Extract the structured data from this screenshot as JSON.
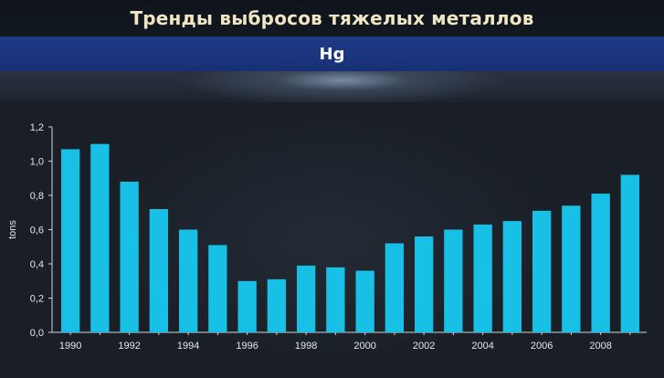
{
  "header": {
    "title": "Тренды выбросов тяжелых металлов",
    "subtitle": "Hg"
  },
  "colors": {
    "bar": "#19c0e6",
    "axis": "#d0d4da",
    "text": "#e6e6e6",
    "title": "#f0e6c4",
    "band": "#1f3a86"
  },
  "chart_data": {
    "type": "bar",
    "title": "",
    "xlabel": "",
    "ylabel": "tons",
    "ylim": [
      0,
      1.2
    ],
    "yticks": [
      "0,0",
      "0,2",
      "0,4",
      "0,6",
      "0,8",
      "1,0",
      "1,2"
    ],
    "categories": [
      1990,
      1991,
      1992,
      1993,
      1994,
      1995,
      1996,
      1997,
      1998,
      1999,
      2000,
      2001,
      2002,
      2003,
      2004,
      2005,
      2006,
      2007,
      2008,
      2009
    ],
    "x_tick_labels": [
      "1990",
      "1992",
      "1994",
      "1996",
      "1998",
      "2000",
      "2002",
      "2004",
      "2006",
      "2008"
    ],
    "values": [
      1.07,
      1.1,
      0.88,
      0.72,
      0.6,
      0.51,
      0.3,
      0.31,
      0.39,
      0.38,
      0.36,
      0.52,
      0.56,
      0.6,
      0.63,
      0.65,
      0.71,
      0.74,
      0.81,
      0.92
    ],
    "grid": false,
    "legend": "none"
  }
}
